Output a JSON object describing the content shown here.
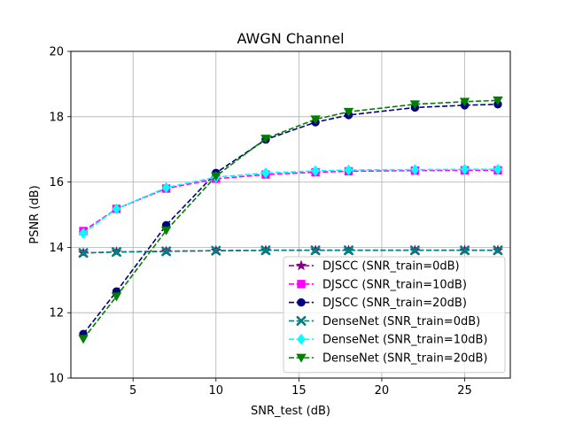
{
  "chart_data": {
    "type": "line",
    "title": "AWGN Channel",
    "xlabel": "SNR_test (dB)",
    "ylabel": "PSNR (dB)",
    "xlim": [
      1.25,
      27.75
    ],
    "ylim": [
      10,
      20
    ],
    "xticks": [
      5,
      10,
      15,
      20,
      25
    ],
    "yticks": [
      10,
      12,
      14,
      16,
      18,
      20
    ],
    "grid": true,
    "legend_position": "lower-right",
    "x": [
      2,
      4,
      7,
      10,
      13,
      16,
      18,
      22,
      25,
      27
    ],
    "series": [
      {
        "name": "DJSCC (SNR_train=0dB)",
        "color": "#800080",
        "marker": "star",
        "linestyle": "dashed",
        "values": [
          13.83,
          13.86,
          13.88,
          13.9,
          13.91,
          13.91,
          13.91,
          13.91,
          13.91,
          13.91
        ]
      },
      {
        "name": "DJSCC (SNR_train=10dB)",
        "color": "#ff00ff",
        "marker": "square",
        "linestyle": "dashed",
        "values": [
          14.5,
          15.18,
          15.8,
          16.1,
          16.23,
          16.3,
          16.33,
          16.35,
          16.36,
          16.36
        ]
      },
      {
        "name": "DJSCC (SNR_train=20dB)",
        "color": "#000080",
        "marker": "circle",
        "linestyle": "dashed",
        "values": [
          11.35,
          12.65,
          14.68,
          16.28,
          17.3,
          17.83,
          18.05,
          18.28,
          18.35,
          18.38
        ]
      },
      {
        "name": "DenseNet (SNR_train=0dB)",
        "color": "#008080",
        "marker": "x",
        "linestyle": "dashed",
        "values": [
          13.83,
          13.86,
          13.88,
          13.9,
          13.91,
          13.91,
          13.91,
          13.91,
          13.91,
          13.91
        ]
      },
      {
        "name": "DenseNet (SNR_train=10dB)",
        "color": "#00ffff",
        "marker": "diamond",
        "linestyle": "dashed",
        "values": [
          14.43,
          15.18,
          15.83,
          16.15,
          16.28,
          16.34,
          16.37,
          16.38,
          16.39,
          16.39
        ]
      },
      {
        "name": "DenseNet (SNR_train=20dB)",
        "color": "#008000",
        "marker": "triangle-down",
        "linestyle": "dashed",
        "values": [
          11.2,
          12.5,
          14.52,
          16.18,
          17.33,
          17.92,
          18.15,
          18.38,
          18.46,
          18.5
        ]
      }
    ]
  }
}
